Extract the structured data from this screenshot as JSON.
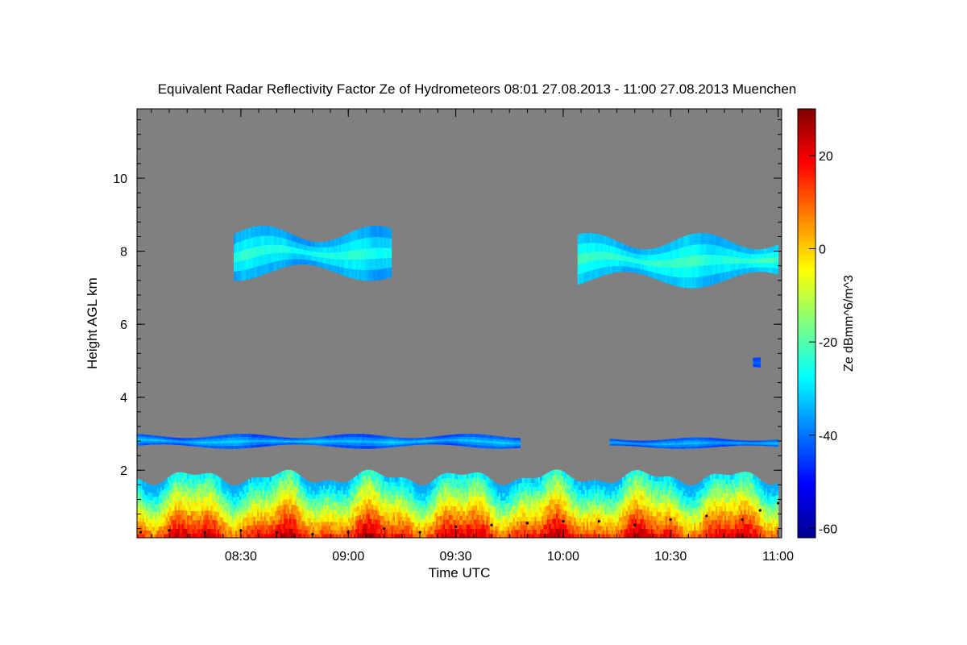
{
  "chart_data": {
    "type": "heatmap",
    "title": "Equivalent Radar Reflectivity Factor Ze of Hydrometeors   08:01 27.08.2013 - 11:00 27.08.2013 Muenchen",
    "xlabel": "Time UTC",
    "ylabel": "Height AGL km",
    "colorbar_label": "Ze dBmm^6/m^3",
    "x_tick_labels": [
      "08:30",
      "09:00",
      "09:30",
      "10:00",
      "10:30",
      "11:00"
    ],
    "x_ticks_min": [
      510,
      540,
      570,
      600,
      630,
      660
    ],
    "xlim_min": [
      481,
      661
    ],
    "y_tick_values": [
      2,
      4,
      6,
      8,
      10
    ],
    "ylim": [
      0.15,
      11.9
    ],
    "colorbar_ticks": [
      20,
      0,
      -20,
      -40,
      -60
    ],
    "colorbar_range": [
      -62,
      30
    ],
    "background_color": "#808080",
    "colormap": "jet",
    "cloud_features": [
      {
        "name": "upper cirrus layer A",
        "time_min": [
          508,
          552
        ],
        "height_km": [
          7.2,
          8.7
        ],
        "ze_dbz": [
          -38,
          -22
        ]
      },
      {
        "name": "upper cirrus layer B",
        "time_min": [
          604,
          660
        ],
        "height_km": [
          7.0,
          8.5
        ],
        "ze_dbz": [
          -36,
          -20
        ]
      },
      {
        "name": "mid-level layer A",
        "time_min": [
          481,
          588
        ],
        "height_km": [
          2.6,
          3.0
        ],
        "ze_dbz": [
          -45,
          -30
        ]
      },
      {
        "name": "mid-level layer B",
        "time_min": [
          613,
          660
        ],
        "height_km": [
          2.6,
          2.9
        ],
        "ze_dbz": [
          -45,
          -32
        ]
      },
      {
        "name": "boundary-layer clouds and rain",
        "time_min": [
          481,
          660
        ],
        "height_km": [
          0.15,
          2.1
        ],
        "ze_dbz": [
          -35,
          30
        ]
      },
      {
        "name": "isolated echo",
        "time_min": [
          653,
          655
        ],
        "height_km": [
          4.8,
          5.2
        ],
        "ze_dbz": [
          -45,
          -40
        ]
      }
    ],
    "black_line_points": [
      [
        482,
        0.3
      ],
      [
        490,
        0.35
      ],
      [
        500,
        0.3
      ],
      [
        510,
        0.35
      ],
      [
        520,
        0.3
      ],
      [
        530,
        0.25
      ],
      [
        540,
        0.3
      ],
      [
        550,
        0.4
      ],
      [
        560,
        0.3
      ],
      [
        570,
        0.45
      ],
      [
        580,
        0.5
      ],
      [
        590,
        0.55
      ],
      [
        600,
        0.6
      ],
      [
        610,
        0.6
      ],
      [
        620,
        0.5
      ],
      [
        630,
        0.65
      ],
      [
        640,
        0.75
      ],
      [
        650,
        0.65
      ],
      [
        655,
        0.9
      ],
      [
        660,
        1.1
      ]
    ]
  }
}
